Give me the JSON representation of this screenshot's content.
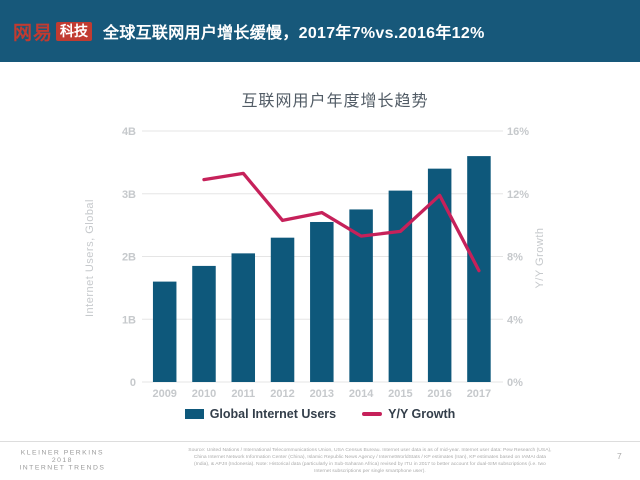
{
  "header": {
    "logo": {
      "netease_text": "网易",
      "tech_badge": "科技"
    },
    "title": "全球互联网用户增长缓慢，2017年7%vs.2016年12%",
    "colors": {
      "background": "#17587A",
      "logo_red": "#C13B31"
    }
  },
  "chart_data": {
    "type": "bar",
    "combo": "bar+line dual axis",
    "title": "互联网用户年度增长趋势",
    "categories": [
      "2009",
      "2010",
      "2011",
      "2012",
      "2013",
      "2014",
      "2015",
      "2016",
      "2017"
    ],
    "series": [
      {
        "name": "Global Internet Users",
        "type": "bar",
        "axis": "left",
        "unit": "B",
        "color": "#0E587B",
        "values": [
          1.6,
          1.85,
          2.05,
          2.3,
          2.55,
          2.75,
          3.05,
          3.4,
          3.6
        ]
      },
      {
        "name": "Y/Y Growth",
        "type": "line",
        "axis": "right",
        "unit": "%",
        "color": "#C6215A",
        "values": [
          null,
          12.9,
          13.3,
          10.3,
          10.8,
          9.3,
          9.6,
          11.9,
          7.1
        ]
      }
    ],
    "left_axis": {
      "label": "Internet Users, Global",
      "ticks": [
        "0",
        "1B",
        "2B",
        "3B",
        "4B"
      ],
      "range": [
        0,
        4
      ]
    },
    "right_axis": {
      "label": "Y/Y Growth",
      "ticks": [
        "0%",
        "4%",
        "8%",
        "12%",
        "16%"
      ],
      "range": [
        0,
        16
      ]
    },
    "grid": true,
    "legend_position": "bottom"
  },
  "footer": {
    "brand_lines": [
      "KLEINER PERKINS",
      "2018",
      "INTERNET TRENDS"
    ],
    "source_text": "Source: United Nations / International Telecommunications Union, USA Census Bureau. Internet user data is as of mid-year. Internet user data: Pew Research (USA), China Internet Network Information Center (China), Islamic Republic News Agency / InternetWorldStats / KP estimates (Iran), KP estimates based on IAMAI data (India), & APJII (Indonesia). Note: Historical data (particularly in Sub-Saharan Africa) revised by ITU in 2017 to better account for dual-SIM subscriptions (i.e. two Internet subscriptions per single smartphone user).",
    "page_number": "7"
  }
}
